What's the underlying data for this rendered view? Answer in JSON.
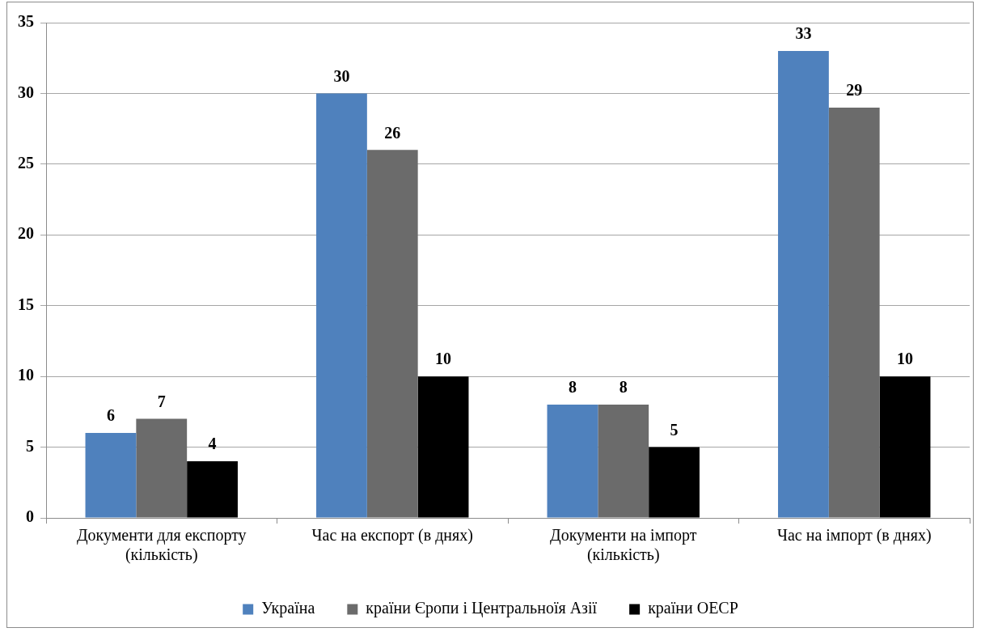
{
  "chart_data": {
    "type": "bar",
    "categories": [
      "Документи для експорту (кількість)",
      "Час на експорт (в днях)",
      "Документи на імпорт (кількість)",
      "Час на імпорт (в днях)"
    ],
    "series": [
      {
        "name": "Україна",
        "color": "#4f81bd",
        "values": [
          6,
          30,
          8,
          33
        ]
      },
      {
        "name": "країни Єропи і Центральноїя Азії",
        "color": "#6b6b6b",
        "values": [
          7,
          26,
          8,
          29
        ]
      },
      {
        "name": "країни ОЕСР",
        "color": "#000000",
        "values": [
          4,
          10,
          5,
          10
        ]
      }
    ],
    "ylim": [
      0,
      35
    ],
    "yticks": [
      0,
      5,
      10,
      15,
      20,
      25,
      30,
      35
    ],
    "grid": "y",
    "legend": "bottom",
    "data_labels": true
  }
}
